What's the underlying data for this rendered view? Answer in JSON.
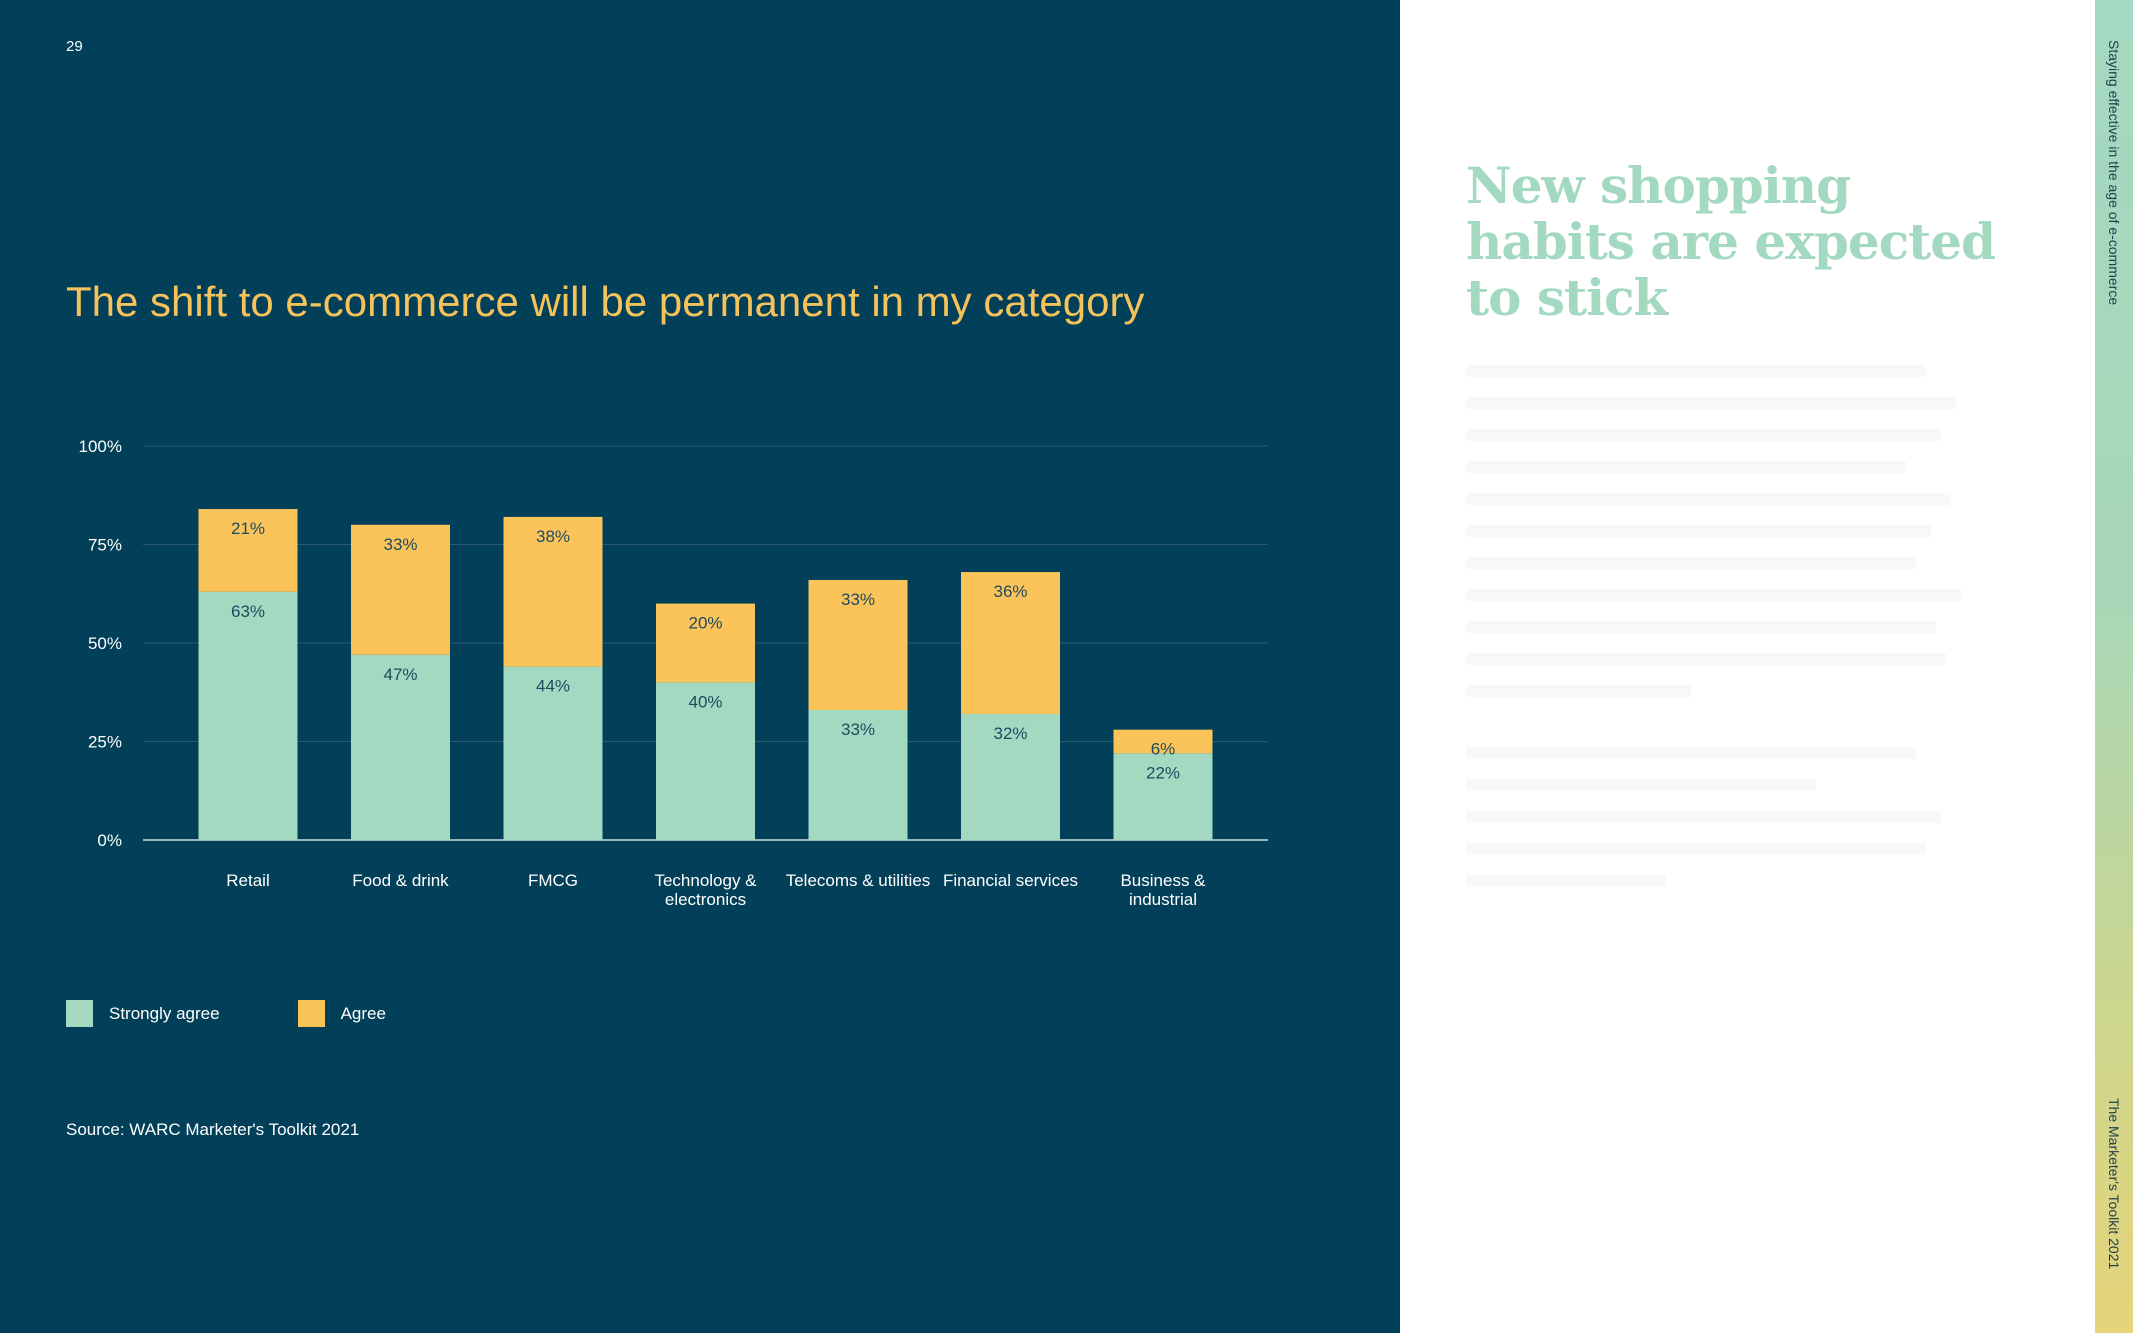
{
  "page_number": "29",
  "section_heading": "New shopping habits are expected to stick",
  "side_labels": {
    "top": "Staying effective in the age of e-commerce",
    "bottom": "The Marketer's Toolkit 2021"
  },
  "colors": {
    "background": "#023f58",
    "strongly_agree": "#a3d9c1",
    "agree": "#fbc45a",
    "title": "#f6c25b",
    "heading": "#a3d9c1"
  },
  "source": "Source: WARC Marketer's Toolkit 2021",
  "chart_data": {
    "type": "bar",
    "stacked": true,
    "title": "The shift to e-commerce will be permanent in my category",
    "xlabel": "",
    "ylabel": "",
    "ylim": [
      0,
      100
    ],
    "yticks": [
      "0%",
      "25%",
      "50%",
      "75%",
      "100%"
    ],
    "grid": true,
    "legend_position": "bottom-left",
    "categories": [
      [
        "Retail"
      ],
      [
        "Food & drink"
      ],
      [
        "FMCG"
      ],
      [
        "Technology &",
        "electronics"
      ],
      [
        "Telecoms & utilities"
      ],
      [
        "Financial services"
      ],
      [
        "Business &",
        "industrial"
      ]
    ],
    "series": [
      {
        "name": "Strongly agree",
        "values": [
          63,
          47,
          44,
          40,
          33,
          32,
          22
        ],
        "labels": [
          "63%",
          "47%",
          "44%",
          "40%",
          "33%",
          "32%",
          "22%"
        ]
      },
      {
        "name": "Agree",
        "values": [
          21,
          33,
          38,
          20,
          33,
          36,
          6
        ],
        "labels": [
          "21%",
          "33%",
          "38%",
          "20%",
          "33%",
          "36%",
          "6%"
        ]
      }
    ]
  }
}
